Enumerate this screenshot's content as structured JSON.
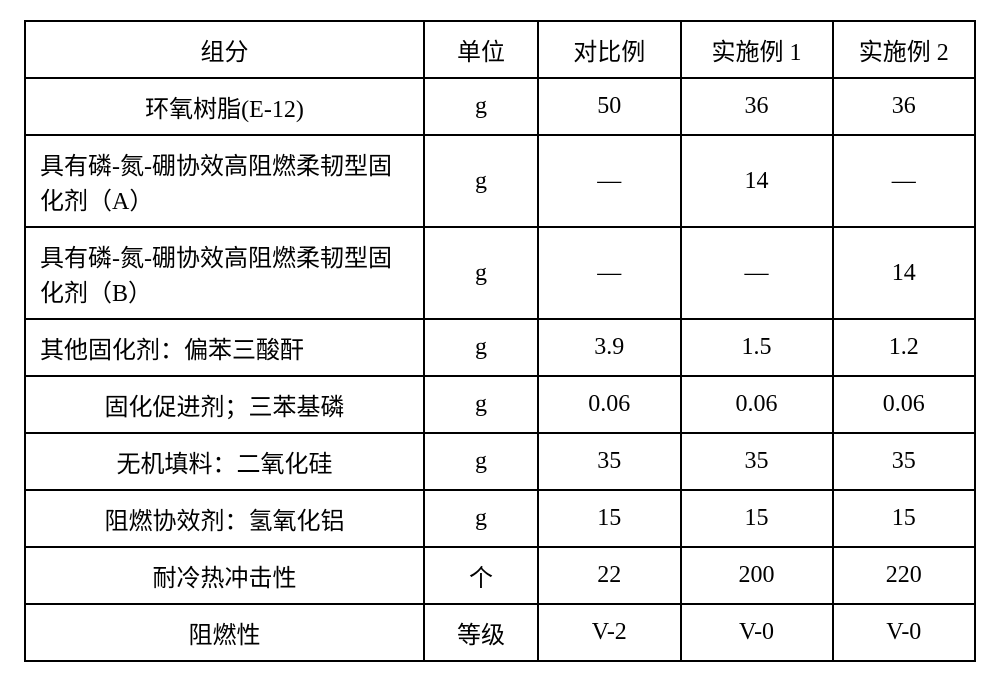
{
  "table": {
    "columns": [
      "组分",
      "单位",
      "对比例",
      "实施例 1",
      "实施例 2"
    ],
    "rows": [
      {
        "label": "环氧树脂(E-12)",
        "align": "center",
        "unit": "g",
        "cells": [
          "50",
          "36",
          "36"
        ]
      },
      {
        "label": "具有磷-氮-硼协效高阻燃柔韧型固化剂（A）",
        "align": "left",
        "unit": "g",
        "cells": [
          "—",
          "14",
          "—"
        ]
      },
      {
        "label": "具有磷-氮-硼协效高阻燃柔韧型固化剂（B）",
        "align": "left",
        "unit": "g",
        "cells": [
          "—",
          "—",
          "14"
        ]
      },
      {
        "label": "其他固化剂：偏苯三酸酐",
        "align": "left",
        "unit": "g",
        "cells": [
          "3.9",
          "1.5",
          "1.2"
        ]
      },
      {
        "label": "固化促进剂；三苯基磷",
        "align": "center",
        "unit": "g",
        "cells": [
          "0.06",
          "0.06",
          "0.06"
        ]
      },
      {
        "label": "无机填料：二氧化硅",
        "align": "center",
        "unit": "g",
        "cells": [
          "35",
          "35",
          "35"
        ]
      },
      {
        "label": "阻燃协效剂：氢氧化铝",
        "align": "center",
        "unit": "g",
        "cells": [
          "15",
          "15",
          "15"
        ]
      },
      {
        "label": "耐冷热冲击性",
        "align": "center",
        "unit": "个",
        "cells": [
          "22",
          "200",
          "220"
        ]
      },
      {
        "label": "阻燃性",
        "align": "center",
        "unit": "等级",
        "cells": [
          "V-2",
          "V-0",
          "V-0"
        ]
      }
    ],
    "border_color": "#000000",
    "background_color": "#ffffff",
    "font_size_pt": 18,
    "column_widths_pct": [
      42,
      12,
      15,
      16,
      15
    ]
  }
}
